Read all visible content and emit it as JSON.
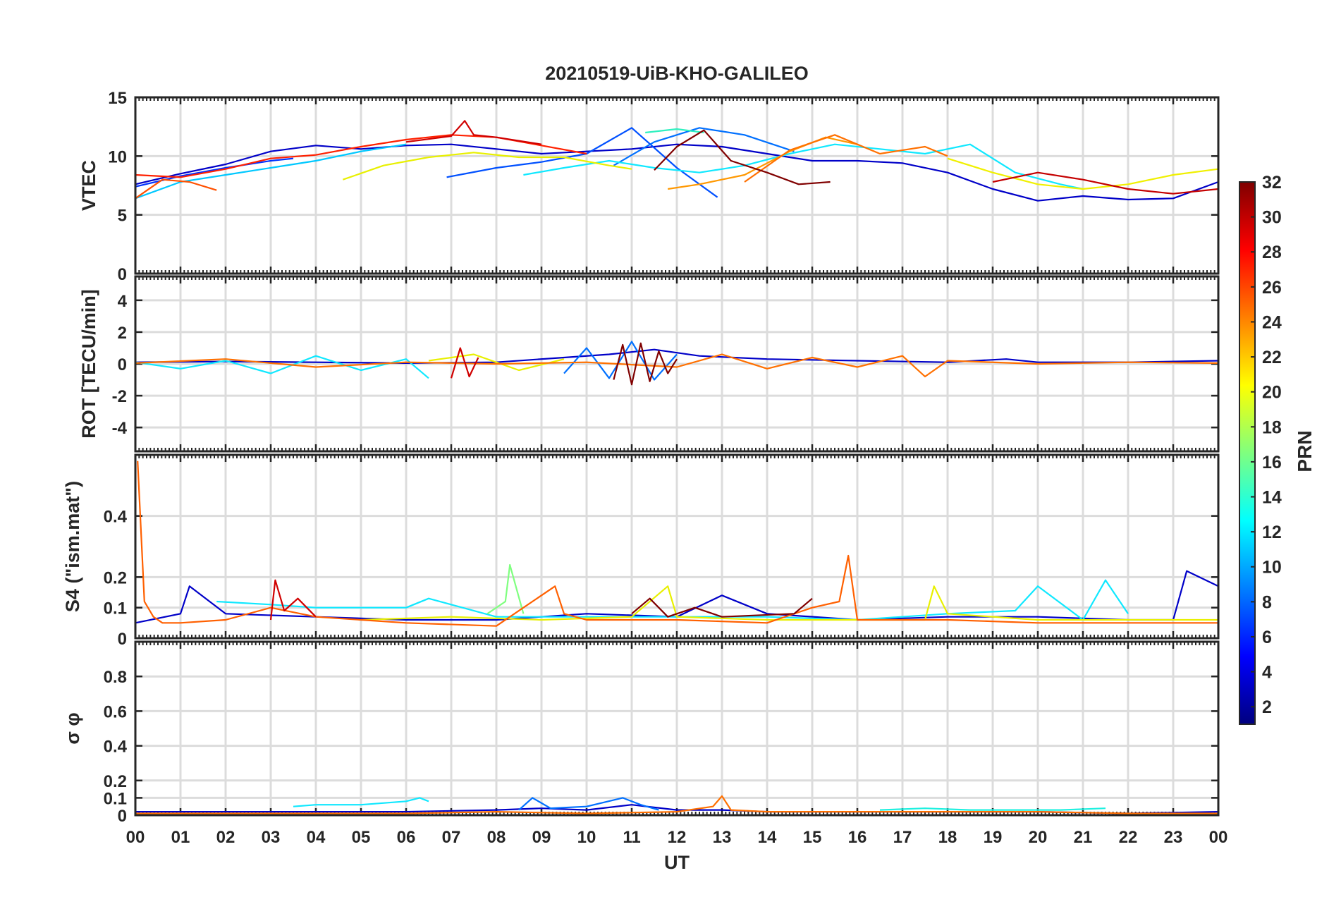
{
  "figure": {
    "title": "20210519-UiB-KHO-GALILEO",
    "xlabel": "UT",
    "x_tick_labels": [
      "00",
      "01",
      "02",
      "03",
      "04",
      "05",
      "06",
      "07",
      "08",
      "09",
      "10",
      "11",
      "12",
      "13",
      "14",
      "15",
      "16",
      "17",
      "18",
      "19",
      "20",
      "21",
      "22",
      "23",
      "00"
    ]
  },
  "colorbar": {
    "label": "PRN",
    "range": [
      1,
      32
    ],
    "tick_values": [
      2,
      4,
      6,
      8,
      10,
      12,
      14,
      16,
      18,
      20,
      22,
      24,
      26,
      28,
      30,
      32
    ],
    "colormap": "jet",
    "stops": [
      "#00007f",
      "#0000ff",
      "#007fff",
      "#00ffff",
      "#7fff7f",
      "#ffff00",
      "#ff7f00",
      "#ff0000",
      "#7f0000"
    ]
  },
  "chart_data": [
    {
      "type": "line",
      "panel": "vtec",
      "ylabel": "VTEC",
      "xlim": [
        0,
        24
      ],
      "ylim": [
        0,
        15
      ],
      "y_ticks": [
        0,
        5,
        10,
        15
      ],
      "grid": true,
      "series": [
        {
          "prn": 2,
          "color": "#0000c8",
          "x": [
            0,
            1,
            2,
            3,
            4,
            5,
            6,
            7,
            8,
            9,
            10,
            11,
            12,
            13,
            14,
            15,
            16,
            17,
            18,
            19,
            20,
            21,
            22,
            23,
            24
          ],
          "y": [
            7.6,
            8.5,
            9.3,
            10.4,
            10.9,
            10.6,
            10.9,
            11.0,
            10.6,
            10.2,
            10.4,
            10.6,
            11.0,
            10.8,
            10.2,
            9.6,
            9.6,
            9.4,
            8.6,
            7.2,
            6.2,
            6.6,
            6.3,
            6.4,
            7.8
          ]
        },
        {
          "prn": 5,
          "color": "#0032ff",
          "x": [
            0.0,
            1.0,
            2.0,
            3.0,
            3.5
          ],
          "y": [
            7.4,
            8.3,
            9.0,
            9.6,
            9.8
          ]
        },
        {
          "prn": 6,
          "color": "#0050ff",
          "x": [
            6.9,
            8.0,
            9.0,
            10.0,
            11.0,
            12.0,
            12.9
          ],
          "y": [
            8.2,
            9.0,
            9.5,
            10.2,
            12.4,
            9.0,
            6.5
          ]
        },
        {
          "prn": 8,
          "color": "#0070ff",
          "x": [
            10.6,
            11.5,
            12.5,
            13.5,
            14.6
          ],
          "y": [
            9.2,
            11.2,
            12.4,
            11.8,
            10.4
          ]
        },
        {
          "prn": 11,
          "color": "#00c8ff",
          "x": [
            0,
            1,
            2,
            3,
            4,
            5,
            6
          ],
          "y": [
            6.4,
            7.8,
            8.4,
            9.0,
            9.6,
            10.4,
            11.0
          ]
        },
        {
          "prn": 12,
          "color": "#10e8ff",
          "x": [
            8.6,
            9.5,
            10.5,
            11.5,
            12.5,
            13.5,
            14.5,
            15.5,
            16.5,
            17.5,
            18.5,
            19.5,
            20.5,
            21.0
          ],
          "y": [
            8.4,
            9.0,
            9.6,
            9.0,
            8.6,
            9.2,
            10.2,
            11.0,
            10.6,
            10.2,
            11.0,
            8.6,
            7.6,
            7.2
          ]
        },
        {
          "prn": 16,
          "color": "#30f0c0",
          "x": [
            11.3,
            12.0,
            12.6
          ],
          "y": [
            12.0,
            12.3,
            12.0
          ]
        },
        {
          "prn": 19,
          "color": "#e8f000",
          "x": [
            4.6,
            5.5,
            6.5,
            7.5,
            8.5,
            9.5,
            10.5,
            11.0
          ],
          "y": [
            8.0,
            9.2,
            9.9,
            10.3,
            9.9,
            9.9,
            9.2,
            8.9
          ]
        },
        {
          "prn": 20,
          "color": "#f0f000",
          "x": [
            18.0,
            19.0,
            20.0,
            21.0,
            22.0,
            23.0,
            24.0
          ],
          "y": [
            9.8,
            8.6,
            7.6,
            7.2,
            7.6,
            8.4,
            8.9
          ]
        },
        {
          "prn": 23,
          "color": "#ff9800",
          "x": [
            11.8,
            12.5,
            13.5,
            14.5,
            15.3,
            16.0
          ],
          "y": [
            7.2,
            7.6,
            8.4,
            10.4,
            11.6,
            11.0
          ]
        },
        {
          "prn": 24,
          "color": "#ff7000",
          "x": [
            13.5,
            14.5,
            15.5,
            16.5,
            17.5,
            18.0
          ],
          "y": [
            7.8,
            10.5,
            11.8,
            10.2,
            10.8,
            10.0
          ]
        },
        {
          "prn": 26,
          "color": "#ff5000",
          "x": [
            0.0,
            0.6,
            1.2,
            1.8
          ],
          "y": [
            6.4,
            8.0,
            7.8,
            7.1
          ]
        },
        {
          "prn": 27,
          "color": "#ff2000",
          "x": [
            0,
            1,
            2,
            3,
            4,
            5,
            6,
            7,
            8,
            9,
            10
          ],
          "y": [
            8.4,
            8.2,
            8.9,
            9.8,
            10.1,
            10.8,
            11.4,
            11.8,
            11.6,
            10.9,
            10.2
          ]
        },
        {
          "prn": 30,
          "color": "#d00000",
          "x": [
            6.0,
            7.0,
            7.3,
            7.5,
            8.0,
            9.0
          ],
          "y": [
            11.2,
            11.7,
            13.0,
            11.8,
            11.6,
            11.0
          ]
        },
        {
          "prn": 31,
          "color": "#c40000",
          "x": [
            19.0,
            20.0,
            21.0,
            22.0,
            23.0,
            24.0
          ],
          "y": [
            7.8,
            8.6,
            8.0,
            7.2,
            6.8,
            7.2
          ]
        },
        {
          "prn": 32,
          "color": "#800000",
          "x": [
            11.5,
            12.0,
            12.6,
            13.2,
            14.0,
            14.7,
            15.4
          ],
          "y": [
            8.8,
            10.8,
            12.2,
            9.6,
            8.6,
            7.6,
            7.8
          ]
        }
      ]
    },
    {
      "type": "line",
      "panel": "rot",
      "ylabel": "ROT [TECU/min]",
      "xlim": [
        0,
        24
      ],
      "ylim": [
        -5.5,
        5.5
      ],
      "y_ticks": [
        -4,
        -2,
        0,
        2,
        4
      ],
      "grid": true,
      "series": [
        {
          "prn": 2,
          "color": "#0000c8",
          "x": [
            0,
            2,
            4,
            6,
            8,
            9.5,
            10.5,
            11.5,
            12.5,
            14,
            16,
            18,
            19.3,
            20,
            22,
            24
          ],
          "y": [
            0.1,
            0.15,
            0.1,
            0.05,
            0.1,
            0.4,
            0.6,
            0.9,
            0.5,
            0.3,
            0.2,
            0.1,
            0.3,
            0.1,
            0.1,
            0.2
          ]
        },
        {
          "prn": 8,
          "color": "#0070ff",
          "x": [
            9.5,
            10.0,
            10.5,
            11.0,
            11.5,
            12.0
          ],
          "y": [
            -0.6,
            1.0,
            -0.9,
            1.4,
            -1.0,
            0.6
          ]
        },
        {
          "prn": 12,
          "color": "#10e8ff",
          "x": [
            0,
            1,
            2,
            3,
            4,
            5,
            6,
            6.5
          ],
          "y": [
            0.1,
            -0.3,
            0.2,
            -0.6,
            0.5,
            -0.4,
            0.3,
            -0.9
          ]
        },
        {
          "prn": 19,
          "color": "#e8f000",
          "x": [
            6.5,
            7.5,
            8.5,
            9.5
          ],
          "y": [
            0.2,
            0.6,
            -0.4,
            0.3
          ]
        },
        {
          "prn": 24,
          "color": "#ff7000",
          "x": [
            0,
            2,
            4,
            6,
            8,
            10,
            12,
            13,
            14,
            15,
            16,
            17,
            17.5,
            18,
            20,
            22,
            24
          ],
          "y": [
            0.05,
            0.3,
            -0.2,
            0.1,
            0.0,
            0.1,
            -0.2,
            0.6,
            -0.3,
            0.4,
            -0.2,
            0.5,
            -0.8,
            0.2,
            0.0,
            0.1,
            0.05
          ]
        },
        {
          "prn": 30,
          "color": "#d00000",
          "x": [
            7.0,
            7.2,
            7.4,
            7.6
          ],
          "y": [
            -0.9,
            1.0,
            -0.8,
            0.4
          ]
        },
        {
          "prn": 32,
          "color": "#800000",
          "x": [
            10.6,
            10.8,
            11.0,
            11.2,
            11.4,
            11.6,
            11.8,
            12.0
          ],
          "y": [
            -1.0,
            1.2,
            -1.3,
            1.3,
            -1.1,
            0.8,
            -0.6,
            0.3
          ]
        }
      ]
    },
    {
      "type": "line",
      "panel": "s4",
      "ylabel": "S4 (\"ism.mat\")",
      "xlim": [
        0,
        24
      ],
      "ylim": [
        0,
        0.6
      ],
      "y_ticks": [
        0,
        0.1,
        0.2,
        0.4
      ],
      "grid": true,
      "series": [
        {
          "prn": 2,
          "color": "#0000c8",
          "x": [
            0,
            1,
            1.2,
            2,
            4,
            6,
            8,
            10,
            12,
            13,
            14,
            16,
            18,
            20,
            22,
            23,
            23.3,
            24
          ],
          "y": [
            0.05,
            0.08,
            0.17,
            0.08,
            0.07,
            0.06,
            0.06,
            0.08,
            0.07,
            0.14,
            0.08,
            0.06,
            0.07,
            0.07,
            0.06,
            0.06,
            0.22,
            0.17
          ]
        },
        {
          "prn": 12,
          "color": "#10e8ff",
          "x": [
            1.8,
            3,
            4,
            5,
            6,
            6.5,
            8,
            10,
            12,
            14,
            16,
            18,
            19.5,
            20,
            21,
            21.5,
            22
          ],
          "y": [
            0.12,
            0.11,
            0.1,
            0.1,
            0.1,
            0.13,
            0.07,
            0.07,
            0.07,
            0.07,
            0.06,
            0.08,
            0.09,
            0.17,
            0.06,
            0.19,
            0.08
          ]
        },
        {
          "prn": 17,
          "color": "#7fff7f",
          "x": [
            7.8,
            8.2,
            8.3,
            8.6
          ],
          "y": [
            0.08,
            0.12,
            0.24,
            0.08
          ]
        },
        {
          "prn": 19,
          "color": "#e8f000",
          "x": [
            5,
            7,
            9,
            11,
            11.8,
            12,
            14,
            16,
            17.5,
            17.7,
            18,
            20,
            22,
            24
          ],
          "y": [
            0.06,
            0.07,
            0.06,
            0.07,
            0.17,
            0.07,
            0.06,
            0.06,
            0.06,
            0.17,
            0.08,
            0.06,
            0.06,
            0.06
          ]
        },
        {
          "prn": 25,
          "color": "#ff6000",
          "x": [
            0.05,
            0.2,
            0.4,
            0.6,
            1,
            2,
            3,
            4,
            6,
            8,
            9.3,
            9.5,
            10,
            12,
            14,
            15,
            15.6,
            15.8,
            16,
            18,
            20,
            22,
            24
          ],
          "y": [
            0.58,
            0.12,
            0.07,
            0.05,
            0.05,
            0.06,
            0.1,
            0.07,
            0.05,
            0.04,
            0.17,
            0.08,
            0.06,
            0.06,
            0.05,
            0.1,
            0.12,
            0.27,
            0.06,
            0.06,
            0.05,
            0.05,
            0.05
          ]
        },
        {
          "prn": 30,
          "color": "#d00000",
          "x": [
            3.0,
            3.1,
            3.3,
            3.6,
            4.0
          ],
          "y": [
            0.06,
            0.19,
            0.09,
            0.13,
            0.07
          ]
        },
        {
          "prn": 32,
          "color": "#800000",
          "x": [
            11.0,
            11.4,
            11.8,
            12.4,
            13.0,
            14.6,
            15.0
          ],
          "y": [
            0.08,
            0.13,
            0.07,
            0.1,
            0.07,
            0.08,
            0.13
          ]
        }
      ]
    },
    {
      "type": "line",
      "panel": "sigma_phi",
      "ylabel": "σ φ",
      "xlim": [
        0,
        24
      ],
      "ylim": [
        0,
        1.0
      ],
      "y_ticks": [
        0,
        0.1,
        0.2,
        0.4,
        0.6,
        0.8
      ],
      "grid": true,
      "series": [
        {
          "prn": 2,
          "color": "#0000c8",
          "x": [
            0,
            2,
            4,
            6,
            8,
            9,
            10,
            11,
            12,
            13,
            14,
            16,
            18,
            20,
            22,
            24
          ],
          "y": [
            0.02,
            0.02,
            0.02,
            0.02,
            0.03,
            0.04,
            0.03,
            0.06,
            0.03,
            0.03,
            0.02,
            0.02,
            0.02,
            0.02,
            0.01,
            0.02
          ]
        },
        {
          "prn": 8,
          "color": "#0070ff",
          "x": [
            8.5,
            8.8,
            9.2,
            10,
            10.8,
            11.2,
            11.6
          ],
          "y": [
            0.03,
            0.1,
            0.04,
            0.05,
            0.1,
            0.06,
            0.03
          ]
        },
        {
          "prn": 12,
          "color": "#10e8ff",
          "x": [
            3.5,
            4,
            5,
            6,
            6.3,
            6.5
          ],
          "y": [
            0.05,
            0.06,
            0.06,
            0.08,
            0.1,
            0.08
          ]
        },
        {
          "prn": 14,
          "color": "#20f0e0",
          "x": [
            16.5,
            17.5,
            18.5,
            19.5,
            20.5,
            21.5
          ],
          "y": [
            0.03,
            0.04,
            0.03,
            0.03,
            0.03,
            0.04
          ]
        },
        {
          "prn": 24,
          "color": "#ff7000",
          "x": [
            0,
            2,
            4,
            6,
            8,
            10,
            12,
            12.8,
            13.0,
            13.2,
            14,
            16,
            18,
            20,
            22,
            24
          ],
          "y": [
            0.01,
            0.01,
            0.01,
            0.01,
            0.02,
            0.01,
            0.02,
            0.05,
            0.11,
            0.03,
            0.02,
            0.02,
            0.02,
            0.02,
            0.01,
            0.01
          ]
        }
      ]
    }
  ]
}
